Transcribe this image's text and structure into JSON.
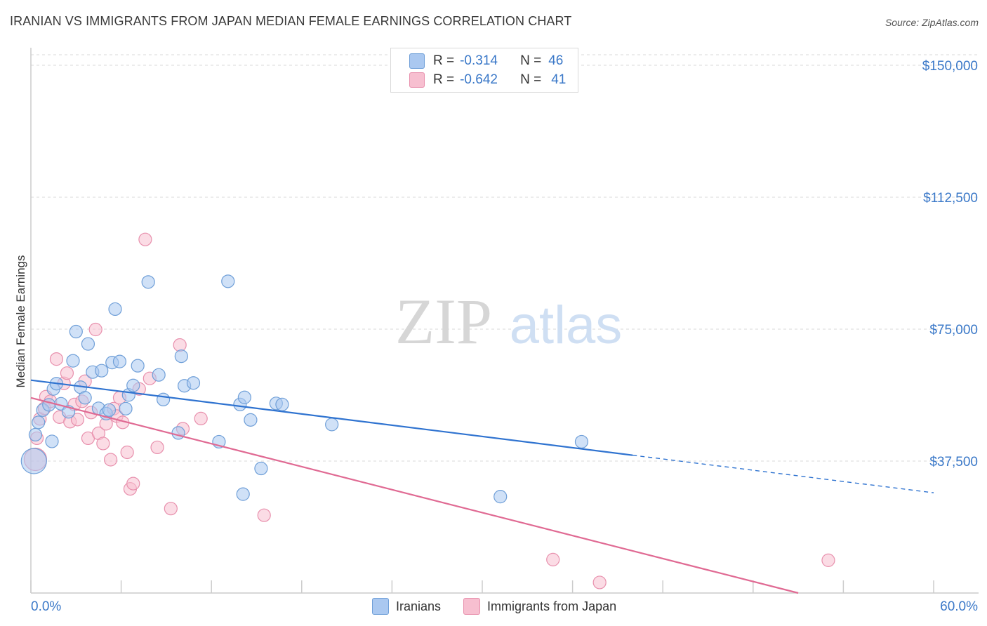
{
  "header": {
    "title": "IRANIAN VS IMMIGRANTS FROM JAPAN MEDIAN FEMALE EARNINGS CORRELATION CHART",
    "source": "Source: ZipAtlas.com"
  },
  "watermark": {
    "zip": "ZIP",
    "atlas": "atlas"
  },
  "legend": {
    "iranians": {
      "r_label": "R =",
      "r_value": "-0.314",
      "n_label": "N =",
      "n_value": "46"
    },
    "japan": {
      "r_label": "R =",
      "r_value": "-0.642",
      "n_label": "N =",
      "n_value": "41"
    }
  },
  "bottom_legend": {
    "iranians": "Iranians",
    "japan": "Immigrants from Japan"
  },
  "colors": {
    "iranians_fill": "#aac8f0",
    "iranians_stroke": "#6f9fd8",
    "iranians_line": "#2f73d0",
    "japan_fill": "#f7bfd0",
    "japan_stroke": "#e890ad",
    "japan_line": "#e06a93",
    "tick_label": "#3a78c8",
    "grid": "#d9d9d9"
  },
  "chart_data": {
    "type": "scatter",
    "title": "IRANIAN VS IMMIGRANTS FROM JAPAN MEDIAN FEMALE EARNINGS CORRELATION CHART",
    "xlabel": "",
    "ylabel": "Median Female Earnings",
    "xlim": [
      0,
      60
    ],
    "ylim": [
      0,
      153000
    ],
    "x_tick_labels": [
      "0.0%",
      "60.0%"
    ],
    "y_ticks": [
      37500,
      75000,
      112500,
      150000
    ],
    "y_tick_labels": [
      "$37,500",
      "$75,000",
      "$112,500",
      "$150,000"
    ],
    "grid": true,
    "series": [
      {
        "name": "Iranians",
        "r": -0.314,
        "n": 46,
        "trend": {
          "x_start": 0,
          "y_start": 60500,
          "x_solid_end": 40,
          "x_end": 60,
          "y_end": 28500
        },
        "points": [
          [
            0.2,
            37500
          ],
          [
            0.3,
            45000
          ],
          [
            0.5,
            48500
          ],
          [
            0.8,
            52000
          ],
          [
            1.2,
            53500
          ],
          [
            1.5,
            58000
          ],
          [
            1.7,
            59500
          ],
          [
            2.0,
            53800
          ],
          [
            2.5,
            51500
          ],
          [
            2.8,
            66000
          ],
          [
            3.0,
            74300
          ],
          [
            3.3,
            58500
          ],
          [
            3.6,
            55500
          ],
          [
            3.8,
            70800
          ],
          [
            4.1,
            62800
          ],
          [
            4.5,
            52500
          ],
          [
            4.7,
            63200
          ],
          [
            5.0,
            51000
          ],
          [
            5.2,
            52000
          ],
          [
            5.4,
            65500
          ],
          [
            5.6,
            80700
          ],
          [
            5.9,
            65800
          ],
          [
            6.3,
            52400
          ],
          [
            6.5,
            56300
          ],
          [
            6.8,
            59000
          ],
          [
            7.1,
            64600
          ],
          [
            7.8,
            88400
          ],
          [
            8.5,
            62000
          ],
          [
            8.8,
            55000
          ],
          [
            9.8,
            45500
          ],
          [
            10.0,
            67300
          ],
          [
            10.2,
            58900
          ],
          [
            10.8,
            59700
          ],
          [
            12.5,
            43000
          ],
          [
            13.1,
            88600
          ],
          [
            13.9,
            53600
          ],
          [
            14.2,
            55600
          ],
          [
            14.6,
            49200
          ],
          [
            15.3,
            35400
          ],
          [
            14.1,
            28100
          ],
          [
            16.3,
            53900
          ],
          [
            16.7,
            53600
          ],
          [
            20.0,
            47900
          ],
          [
            31.2,
            27400
          ],
          [
            36.6,
            43000
          ],
          [
            1.4,
            43100
          ]
        ]
      },
      {
        "name": "Immigrants from Japan",
        "r": -0.642,
        "n": 41,
        "trend": {
          "x_start": 0,
          "y_start": 55500,
          "x_end": 51,
          "y_end": 0
        },
        "points": [
          [
            0.4,
            44000
          ],
          [
            0.6,
            49500
          ],
          [
            0.9,
            52500
          ],
          [
            1.0,
            55800
          ],
          [
            1.3,
            54500
          ],
          [
            1.7,
            66500
          ],
          [
            1.9,
            50000
          ],
          [
            2.2,
            59600
          ],
          [
            2.4,
            62500
          ],
          [
            2.6,
            48700
          ],
          [
            2.9,
            53600
          ],
          [
            3.1,
            49300
          ],
          [
            3.4,
            54500
          ],
          [
            3.6,
            60200
          ],
          [
            3.8,
            44000
          ],
          [
            4.0,
            51300
          ],
          [
            4.3,
            74900
          ],
          [
            4.5,
            45400
          ],
          [
            4.8,
            42500
          ],
          [
            5.0,
            48100
          ],
          [
            5.3,
            37900
          ],
          [
            5.5,
            52400
          ],
          [
            5.7,
            50300
          ],
          [
            5.9,
            55500
          ],
          [
            6.1,
            48500
          ],
          [
            6.4,
            40000
          ],
          [
            6.6,
            29600
          ],
          [
            6.8,
            31100
          ],
          [
            7.2,
            58000
          ],
          [
            7.6,
            100500
          ],
          [
            7.9,
            61000
          ],
          [
            8.4,
            41400
          ],
          [
            9.3,
            24000
          ],
          [
            9.9,
            70500
          ],
          [
            10.1,
            46700
          ],
          [
            11.3,
            49600
          ],
          [
            15.5,
            22100
          ],
          [
            34.7,
            9500
          ],
          [
            37.8,
            3000
          ],
          [
            53.0,
            9300
          ],
          [
            0.3,
            38000
          ]
        ]
      }
    ]
  }
}
